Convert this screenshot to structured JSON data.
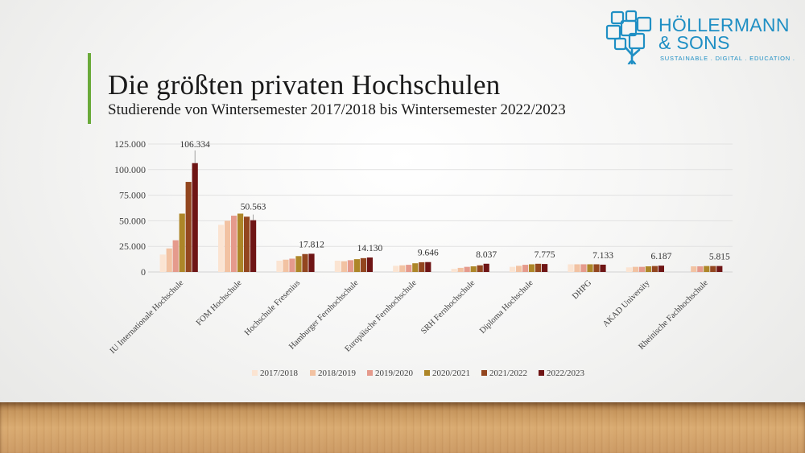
{
  "slide": {
    "title": "Die größten privaten Hochschulen",
    "subtitle": "Studierende von Wintersemester 2017/2018 bis Wintersemester 2022/2023"
  },
  "logo": {
    "name_line1": "HÖLLERMANN",
    "name_line2": "& SONS",
    "tagline": "SUSTAINABLE . DIGITAL . EDUCATION .",
    "color": "#1f8fc4"
  },
  "chart_data": {
    "type": "bar",
    "title": "",
    "xlabel": "",
    "ylabel": "",
    "ylim": [
      0,
      125000
    ],
    "yticks": [
      0,
      25000,
      50000,
      75000,
      100000,
      125000
    ],
    "ytick_labels": [
      "0",
      "25.000",
      "50.000",
      "75.000",
      "100.000",
      "125.000"
    ],
    "grid": true,
    "legend_position": "bottom",
    "categories": [
      "IU Internationale Hochschule",
      "FOM Hochschule",
      "Hochschule Fresenius",
      "Hamburger Fernhochschule",
      "Europäische Fernhochschule",
      "SRH Fernhochschule",
      "Diploma Hochschule",
      "DHPG",
      "AKAD University",
      "Rheinische Fachhochschule"
    ],
    "series": [
      {
        "name": "2017/2018",
        "color": "#fbe4d2",
        "values": [
          17000,
          46000,
          11000,
          11000,
          6000,
          3000,
          5000,
          7500,
          4500,
          0
        ]
      },
      {
        "name": "2018/2019",
        "color": "#f2c2a2",
        "values": [
          23000,
          50000,
          12000,
          10500,
          6500,
          4000,
          6000,
          7500,
          5000,
          5500
        ]
      },
      {
        "name": "2019/2020",
        "color": "#e59a8c",
        "values": [
          31000,
          55000,
          13000,
          11500,
          7000,
          5000,
          7000,
          7500,
          5000,
          5500
        ]
      },
      {
        "name": "2020/2021",
        "color": "#ad8628",
        "values": [
          57000,
          57000,
          15500,
          12500,
          8500,
          5500,
          7500,
          7500,
          5500,
          5800
        ]
      },
      {
        "name": "2021/2022",
        "color": "#93461f",
        "values": [
          88000,
          54000,
          17500,
          13500,
          9500,
          6500,
          8000,
          7500,
          5800,
          5800
        ]
      },
      {
        "name": "2022/2023",
        "color": "#6f1515",
        "values": [
          106334,
          50563,
          17812,
          14130,
          9646,
          8037,
          7775,
          7133,
          6187,
          5815
        ]
      }
    ],
    "data_labels": [
      "106.334",
      "50.563",
      "17.812",
      "14.130",
      "9.646",
      "8.037",
      "7.775",
      "7.133",
      "6.187",
      "5.815"
    ]
  }
}
